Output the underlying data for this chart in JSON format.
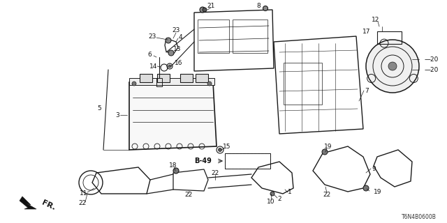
{
  "bg_color": "#ffffff",
  "line_color": "#1a1a1a",
  "part_number_code": "T6N4B0600B",
  "fig_width": 6.4,
  "fig_height": 3.2,
  "dpi": 100,
  "font_size": 6.5,
  "annotation_color": "#111111"
}
